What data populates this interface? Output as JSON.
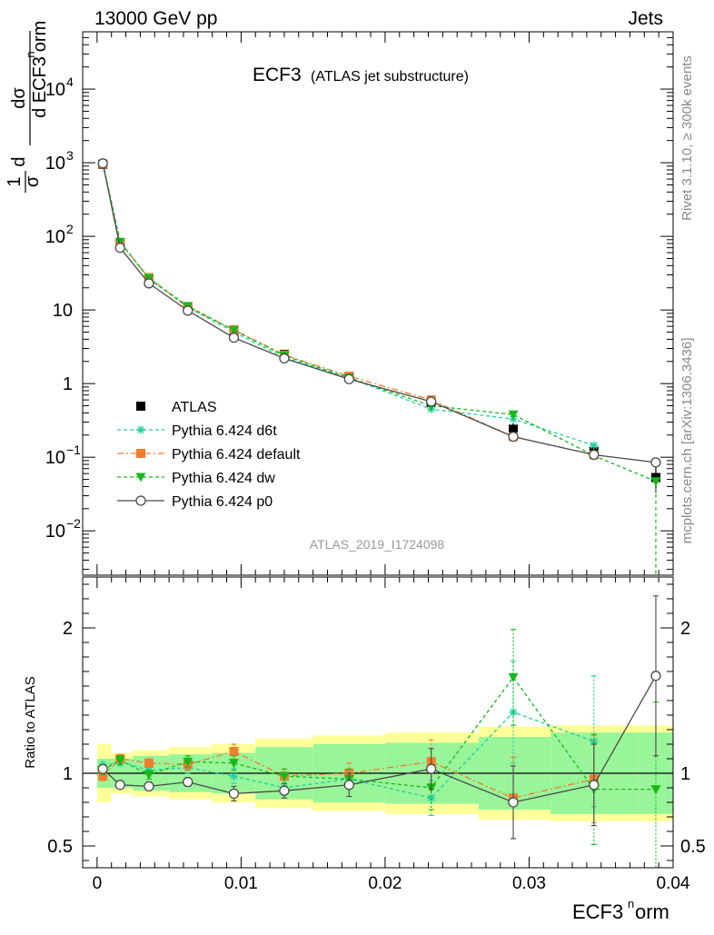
{
  "header": {
    "left": "13000 GeV pp",
    "right": "Jets"
  },
  "plot": {
    "title": "ECF3",
    "subtitle": "(ATLAS jet substructure)",
    "analysis_id": "ATLAS_2019_I1724098",
    "side_rivet": "Rivet 3.1.10, ≥ 300k events",
    "side_mcplots": "mcplots.cern.ch [arXiv:1306.3436]",
    "ylabel_top_a": "dσ",
    "ylabel_top_b": "d ECF3",
    "ylabel_top_c": "orm",
    "ylabel_top_d": "d",
    "ylabel_top_e": "1",
    "ylabel_top_f": "σ",
    "ratio_ylabel": "Ratio to ATLAS",
    "xlabel_main": "ECF3",
    "xlabel_sup": "n",
    "xlabel_tail": "orm"
  },
  "chart_data": {
    "type": "line",
    "xlim": [
      -0.001,
      0.04
    ],
    "ylim_main": [
      0.0025,
      60000
    ],
    "ylim_ratio": [
      0.35,
      2.35
    ],
    "y_scale_main": "log",
    "legend_placement": "lower-left",
    "x_ticks": [
      "0",
      "0.01",
      "0.02",
      "0.03",
      "0.04"
    ],
    "main_y_ticks": [
      {
        "v": 0.01,
        "base": "10",
        "exp": "−2"
      },
      {
        "v": 0.1,
        "base": "10",
        "exp": "−1"
      },
      {
        "v": 1,
        "base": "1",
        "exp": ""
      },
      {
        "v": 10,
        "base": "10",
        "exp": ""
      },
      {
        "v": 100,
        "base": "10",
        "exp": "2"
      },
      {
        "v": 1000,
        "base": "10",
        "exp": "3"
      },
      {
        "v": 10000,
        "base": "10",
        "exp": "4"
      }
    ],
    "ratio_y_ticks": [
      "0.5",
      "1",
      "2"
    ],
    "bin_edges": [
      0,
      0.001,
      0.0025,
      0.005,
      0.008,
      0.011,
      0.015,
      0.02,
      0.0265,
      0.0315,
      0.0375,
      0.04
    ],
    "x": [
      0.0004,
      0.0016,
      0.0036,
      0.0063,
      0.0095,
      0.013,
      0.0175,
      0.0232,
      0.0289,
      0.0345,
      0.0388
    ],
    "band_yellow_frac": [
      0.2,
      0.14,
      0.16,
      0.18,
      0.2,
      0.24,
      0.26,
      0.28,
      0.32,
      0.33,
      0.33
    ],
    "band_green_frac": [
      0.1,
      0.1,
      0.12,
      0.13,
      0.14,
      0.18,
      0.2,
      0.21,
      0.25,
      0.28,
      0.28
    ],
    "series": [
      {
        "name": "ATLAS",
        "color": "#000000",
        "marker": "square",
        "line": "none",
        "values": [
          950,
          78,
          26,
          10.5,
          5,
          2.5,
          1.25,
          0.55,
          0.24,
          0.12,
          0.053
        ],
        "errors": [
          0,
          0,
          0,
          0,
          0,
          0,
          0,
          0,
          0.05,
          0.025,
          0.02
        ]
      },
      {
        "name": "Pythia 6.424 d6t",
        "color": "#1fcfa0",
        "marker": "star",
        "line": "dashed",
        "values": [
          1000,
          85,
          26.5,
          10.9,
          5.0,
          2.25,
          1.2,
          0.45,
          0.33,
          0.145,
          0.0
        ],
        "ratio": [
          1.05,
          1.08,
          1.02,
          1.04,
          0.98,
          0.9,
          0.96,
          0.83,
          1.42,
          1.22,
          null
        ],
        "ratio_err": [
          0.03,
          0.03,
          0.03,
          0.04,
          0.05,
          0.05,
          0.07,
          0.12,
          0.35,
          0.45,
          null
        ]
      },
      {
        "name": "Pythia 6.424 default",
        "color": "#f07e2f",
        "marker": "square",
        "line": "dashdot",
        "values": [
          960,
          82,
          27.5,
          10.9,
          5.4,
          2.45,
          1.26,
          0.6,
          0.19,
          0.108,
          0.0
        ],
        "ratio": [
          0.98,
          1.1,
          1.07,
          1.06,
          1.15,
          0.98,
          1.0,
          1.08,
          0.83,
          0.96,
          null
        ],
        "ratio_err": [
          0.03,
          0.03,
          0.03,
          0.04,
          0.05,
          0.05,
          0.07,
          0.15,
          0.28,
          0.3,
          null
        ]
      },
      {
        "name": "Pythia 6.424 dw",
        "color": "#16b81a",
        "marker": "triangle-down",
        "line": "dashed",
        "values": [
          970,
          84,
          26.8,
          11.3,
          5.3,
          2.4,
          1.2,
          0.5,
          0.38,
          0.105,
          0.047
        ],
        "ratio": [
          1.02,
          1.09,
          0.99,
          1.08,
          1.07,
          0.98,
          0.96,
          0.9,
          1.66,
          0.89,
          0.89
        ],
        "ratio_err": [
          0.03,
          0.03,
          0.03,
          0.04,
          0.05,
          0.05,
          0.07,
          0.15,
          0.33,
          0.38,
          0.6
        ]
      },
      {
        "name": "Pythia 6.424 p0",
        "color": "#4a4a4a",
        "marker": "circle-open",
        "line": "solid",
        "values": [
          980,
          70,
          23,
          9.8,
          4.2,
          2.2,
          1.15,
          0.57,
          0.19,
          0.108,
          0.085
        ],
        "ratio": [
          1.03,
          0.92,
          0.91,
          0.94,
          0.86,
          0.88,
          0.92,
          1.03,
          0.8,
          0.92,
          1.67
        ],
        "ratio_err": [
          0.02,
          0.02,
          0.03,
          0.03,
          0.05,
          0.05,
          0.08,
          0.14,
          0.25,
          0.28,
          0.55
        ]
      }
    ]
  }
}
